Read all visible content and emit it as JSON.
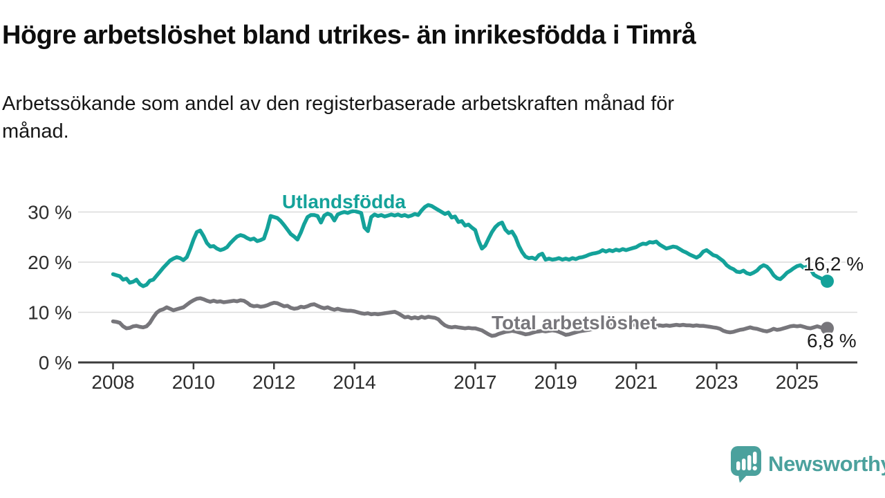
{
  "header": {
    "title": "Högre arbetslöshet bland utrikes- än inrikesfödda i Timrå",
    "subtitle": "Arbetssökande som andel av den registerbaserade arbetskraften månad för månad."
  },
  "footer": {
    "brand": "Newsworthy"
  },
  "colors": {
    "utlandsfodda_line": "#14a29a",
    "total_line": "#77767b",
    "value_label": "#1c1c1c",
    "axis": "#3b3b3b",
    "axis_text": "#2d2d2d",
    "gridline": "#dadada",
    "logo": "#4ba19d"
  },
  "chart_data": {
    "type": "line",
    "title": "Högre arbetslöshet bland utrikes- än inrikesfödda i Timrå",
    "subtitle": "Arbetssökande som andel av den registerbaserade arbetskraften månad för månad.",
    "x_unit": "month",
    "x_start": "2008-01",
    "x_end": "2025-10",
    "grid": "horizontal",
    "legend_position": "inline-labels",
    "ylim": [
      0,
      33
    ],
    "y_tick_values": [
      0,
      10,
      20,
      30
    ],
    "y_tick_labels": [
      "0 %",
      "10 %",
      "20 %",
      "30 %"
    ],
    "x_tick_years": [
      2008,
      2010,
      2012,
      2014,
      2017,
      2019,
      2021,
      2023,
      2025
    ],
    "x_tick_labels": [
      "2008",
      "2010",
      "2012",
      "2014",
      "2017",
      "2019",
      "2021",
      "2023",
      "2025"
    ],
    "series": [
      {
        "name": "Utlandsfödda",
        "color": "#14a29a",
        "end_label": "16,2 %",
        "end_value": 16.2,
        "values": [
          17.6,
          17.4,
          17.2,
          16.5,
          16.7,
          15.9,
          16.1,
          16.5,
          15.6,
          15.2,
          15.5,
          16.3,
          16.5,
          17.3,
          18.1,
          18.9,
          19.6,
          20.3,
          20.7,
          21.0,
          20.8,
          20.4,
          21.0,
          22.6,
          24.5,
          26.0,
          26.3,
          25.2,
          23.8,
          23.1,
          23.2,
          22.7,
          22.4,
          22.6,
          23.0,
          23.8,
          24.5,
          25.1,
          25.4,
          25.2,
          24.8,
          24.5,
          24.7,
          24.2,
          24.4,
          24.7,
          26.7,
          29.2,
          29.0,
          28.8,
          28.2,
          27.4,
          26.5,
          25.6,
          25.1,
          24.5,
          25.9,
          27.6,
          29.0,
          29.4,
          29.4,
          29.2,
          27.9,
          29.3,
          29.7,
          29.4,
          28.3,
          29.5,
          29.8,
          30.0,
          29.8,
          30.1,
          30.2,
          30.0,
          29.8,
          26.9,
          26.2,
          29.0,
          29.5,
          29.2,
          29.4,
          29.1,
          29.3,
          29.5,
          29.3,
          29.5,
          29.2,
          29.4,
          29.1,
          29.3,
          29.6,
          29.4,
          30.3,
          31.0,
          31.4,
          31.2,
          30.8,
          30.4,
          30.0,
          29.6,
          29.9,
          28.9,
          29.1,
          28.0,
          28.2,
          27.3,
          27.5,
          26.9,
          26.4,
          24.3,
          22.7,
          23.3,
          24.7,
          26.0,
          27.0,
          27.6,
          27.9,
          26.5,
          25.8,
          26.1,
          25.0,
          23.3,
          22.0,
          21.1,
          20.8,
          20.9,
          20.6,
          21.4,
          21.7,
          20.5,
          20.7,
          20.5,
          20.6,
          20.8,
          20.5,
          20.7,
          20.5,
          20.8,
          20.6,
          20.9,
          21.0,
          21.2,
          21.5,
          21.7,
          21.8,
          22.0,
          22.4,
          22.1,
          22.4,
          22.2,
          22.5,
          22.3,
          22.6,
          22.4,
          22.6,
          22.8,
          23.0,
          23.4,
          23.7,
          23.6,
          24.0,
          23.9,
          24.1,
          23.5,
          23.1,
          22.7,
          22.9,
          23.1,
          23.0,
          22.6,
          22.2,
          21.9,
          21.5,
          21.2,
          20.9,
          21.3,
          22.1,
          22.4,
          21.9,
          21.4,
          21.2,
          20.7,
          20.2,
          19.4,
          18.9,
          18.6,
          18.1,
          18.0,
          18.3,
          17.8,
          17.6,
          17.9,
          18.3,
          19.0,
          19.4,
          19.1,
          18.4,
          17.4,
          16.8,
          16.6,
          17.2,
          17.9,
          18.3,
          18.8,
          19.2,
          19.4,
          18.9,
          19.1,
          18.6,
          17.5,
          17.1,
          16.8,
          16.5,
          16.2
        ]
      },
      {
        "name": "Total arbetslöshet",
        "color": "#77767b",
        "end_label": "6,8 %",
        "end_value": 6.8,
        "values": [
          8.2,
          8.1,
          7.9,
          7.2,
          6.8,
          6.9,
          7.2,
          7.3,
          7.1,
          7.0,
          7.2,
          7.9,
          9.0,
          9.9,
          10.4,
          10.6,
          11.0,
          10.7,
          10.4,
          10.6,
          10.8,
          11.0,
          11.5,
          12.0,
          12.4,
          12.7,
          12.8,
          12.6,
          12.3,
          12.1,
          12.3,
          12.1,
          12.2,
          12.0,
          12.1,
          12.2,
          12.3,
          12.2,
          12.4,
          12.3,
          11.9,
          11.4,
          11.2,
          11.3,
          11.1,
          11.2,
          11.4,
          11.7,
          11.9,
          11.8,
          11.5,
          11.2,
          11.3,
          10.9,
          10.7,
          10.8,
          11.1,
          11.0,
          11.2,
          11.5,
          11.6,
          11.3,
          11.0,
          10.8,
          11.0,
          10.7,
          10.5,
          10.7,
          10.5,
          10.4,
          10.3,
          10.3,
          10.2,
          10.0,
          9.8,
          9.7,
          9.8,
          9.6,
          9.7,
          9.6,
          9.7,
          9.8,
          9.9,
          10.0,
          10.1,
          9.8,
          9.4,
          9.0,
          9.1,
          8.8,
          9.0,
          8.8,
          9.1,
          8.9,
          9.1,
          9.0,
          8.9,
          8.6,
          7.9,
          7.4,
          7.1,
          7.0,
          7.1,
          7.0,
          6.9,
          6.8,
          6.9,
          6.8,
          6.8,
          6.6,
          6.4,
          6.0,
          5.6,
          5.3,
          5.4,
          5.7,
          5.9,
          6.1,
          6.2,
          6.3,
          6.2,
          6.0,
          5.8,
          5.6,
          5.7,
          5.9,
          6.1,
          6.2,
          6.3,
          6.2,
          6.3,
          6.4,
          6.3,
          6.1,
          5.8,
          5.5,
          5.6,
          5.8,
          6.0,
          6.2,
          6.3,
          6.4,
          6.5,
          6.7,
          6.9,
          7.1,
          7.3,
          7.5,
          7.6,
          7.5,
          7.6,
          7.5,
          7.4,
          7.5,
          7.4,
          7.5,
          7.5,
          7.4,
          7.5,
          7.4,
          7.5,
          7.4,
          7.3,
          7.4,
          7.3,
          7.4,
          7.3,
          7.4,
          7.5,
          7.4,
          7.5,
          7.4,
          7.4,
          7.3,
          7.4,
          7.3,
          7.3,
          7.2,
          7.1,
          7.0,
          6.9,
          6.7,
          6.3,
          6.1,
          6.0,
          6.1,
          6.3,
          6.5,
          6.6,
          6.8,
          7.0,
          6.8,
          6.7,
          6.5,
          6.3,
          6.2,
          6.4,
          6.7,
          6.5,
          6.6,
          6.8,
          7.0,
          7.2,
          7.3,
          7.2,
          7.3,
          7.1,
          6.9,
          6.8,
          7.0,
          7.2,
          7.0,
          6.9,
          6.8
        ]
      }
    ]
  }
}
